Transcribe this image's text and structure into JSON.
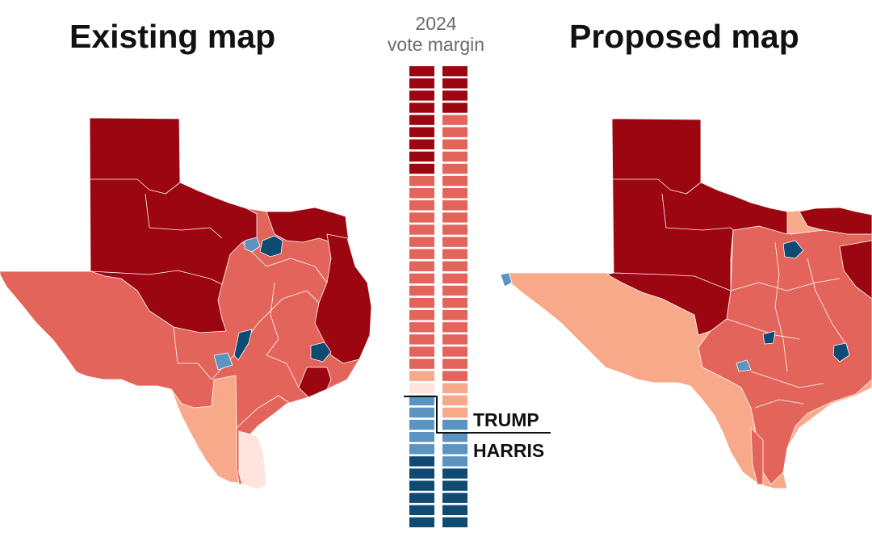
{
  "titles": {
    "existing": "Existing map",
    "proposed": "Proposed map"
  },
  "center_header": {
    "year": "2024",
    "subtitle": "vote margin"
  },
  "labels": {
    "trump": "TRUMP",
    "harris": "HARRIS"
  },
  "colors": {
    "dark_red": "#9b0610",
    "red": "#e3645a",
    "light_red": "#f8a98a",
    "pale_red": "#fde4dc",
    "light_blue": "#5b93c1",
    "dark_blue": "#0e4a72",
    "divider": "#111111"
  },
  "district_columns": {
    "existing": [
      "dark_red",
      "dark_red",
      "dark_red",
      "dark_red",
      "dark_red",
      "dark_red",
      "dark_red",
      "dark_red",
      "dark_red",
      "red",
      "red",
      "red",
      "red",
      "red",
      "red",
      "red",
      "red",
      "red",
      "red",
      "red",
      "red",
      "red",
      "red",
      "red",
      "red",
      "light_red",
      "pale_red",
      "light_blue",
      "light_blue",
      "light_blue",
      "light_blue",
      "light_blue",
      "dark_blue",
      "dark_blue",
      "dark_blue",
      "dark_blue",
      "dark_blue",
      "dark_blue"
    ],
    "proposed": [
      "dark_red",
      "dark_red",
      "dark_red",
      "dark_red",
      "red",
      "red",
      "red",
      "red",
      "red",
      "red",
      "red",
      "red",
      "red",
      "red",
      "red",
      "red",
      "red",
      "red",
      "red",
      "red",
      "red",
      "red",
      "red",
      "red",
      "red",
      "red",
      "light_red",
      "light_red",
      "light_red",
      "light_blue",
      "light_blue",
      "light_blue",
      "light_blue",
      "dark_blue",
      "dark_blue",
      "dark_blue",
      "dark_blue",
      "dark_blue"
    ]
  }
}
